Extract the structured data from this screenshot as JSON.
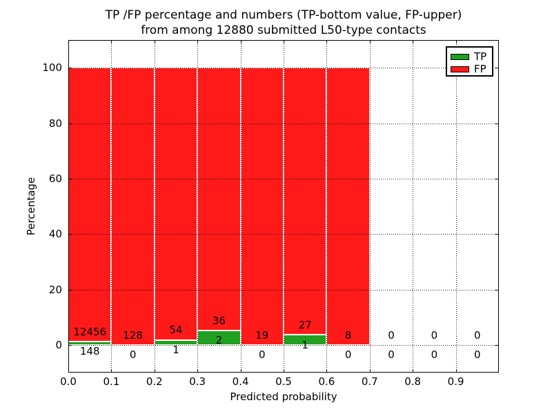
{
  "figure": {
    "title_line1": "TP /FP percentage and numbers (TP-bottom value, FP-upper)",
    "title_line2": "from among 12880 submitted L50-type contacts"
  },
  "chart_data": {
    "type": "bar",
    "stacked": true,
    "title": "TP /FP percentage and numbers (TP-bottom value, FP-upper) from among 12880 submitted L50-type contacts",
    "xlabel": "Predicted probability",
    "ylabel": "Percentage",
    "xlim": [
      0.0,
      1.0
    ],
    "ylim": [
      -10,
      110
    ],
    "xticks": [
      "0.0",
      "0.1",
      "0.2",
      "0.3",
      "0.4",
      "0.5",
      "0.6",
      "0.7",
      "0.8",
      "0.9"
    ],
    "yticks": [
      "0",
      "20",
      "40",
      "60",
      "80",
      "100"
    ],
    "grid": {
      "on": true,
      "style": "dotted",
      "color": "#000000"
    },
    "total_submitted": 12880,
    "unit": "percent (bars show TP% and FP% of each bin; labels show raw counts)",
    "categories": [
      "0.0-0.1",
      "0.1-0.2",
      "0.2-0.3",
      "0.3-0.4",
      "0.4-0.5",
      "0.5-0.6",
      "0.6-0.7",
      "0.7-0.8",
      "0.8-0.9",
      "0.9-1.0"
    ],
    "series": [
      {
        "name": "TP",
        "color": "#22A022",
        "counts": [
          148,
          0,
          1,
          2,
          0,
          1,
          0,
          0,
          0,
          0
        ]
      },
      {
        "name": "FP",
        "color": "#FF1A1A",
        "counts": [
          12456,
          128,
          54,
          36,
          19,
          27,
          8,
          0,
          0,
          0
        ]
      }
    ],
    "legend": {
      "position": "upper right",
      "entries": [
        "TP",
        "FP"
      ]
    }
  }
}
